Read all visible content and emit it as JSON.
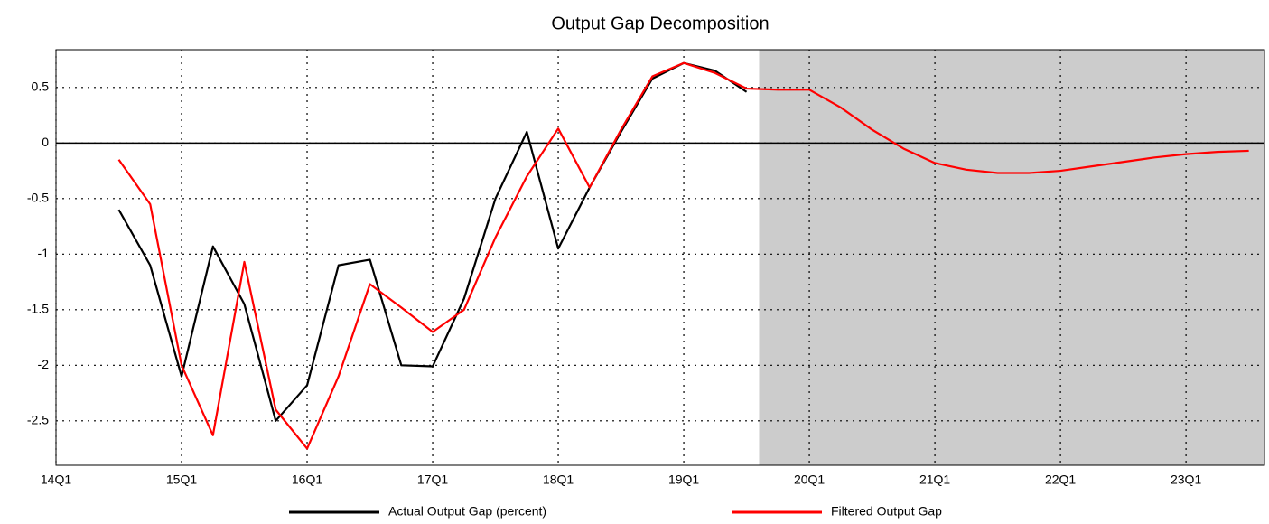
{
  "chart_data": {
    "type": "line",
    "title": "Output Gap Decomposition",
    "x": [
      2,
      3,
      4,
      5,
      6,
      7,
      8,
      9,
      10,
      11,
      12,
      13,
      14,
      15,
      16,
      17,
      18,
      19,
      20,
      21,
      22,
      23,
      24,
      25,
      26,
      27,
      28,
      29,
      30,
      31,
      32,
      33,
      34,
      35,
      36,
      37,
      38
    ],
    "series": [
      {
        "name": "Actual Output Gap (percent)",
        "color": "#000000",
        "values": [
          -0.6,
          -1.1,
          -2.1,
          -0.93,
          -1.45,
          -2.5,
          -2.18,
          -1.1,
          -1.05,
          -2.0,
          -2.01,
          -1.4,
          -0.5,
          0.1,
          -0.95,
          -0.4,
          0.1,
          0.58,
          0.72,
          0.65,
          0.46,
          null,
          null,
          null,
          null,
          null,
          null,
          null,
          null,
          null,
          null,
          null,
          null,
          null,
          null,
          null,
          null
        ]
      },
      {
        "name": "Filtered Output Gap",
        "color": "#ff0000",
        "values": [
          -0.15,
          -0.55,
          -2.0,
          -2.63,
          -1.07,
          -2.4,
          -2.75,
          -2.1,
          -1.27,
          -1.48,
          -1.7,
          -1.5,
          -0.85,
          -0.3,
          0.13,
          -0.4,
          0.12,
          0.6,
          0.72,
          0.63,
          0.49,
          0.48,
          0.48,
          0.32,
          0.12,
          -0.05,
          -0.18,
          -0.24,
          -0.27,
          -0.27,
          -0.25,
          -0.21,
          -0.17,
          -0.13,
          -0.1,
          -0.08,
          -0.07
        ]
      }
    ],
    "xlim": [
      0,
      38.5
    ],
    "xticks": [
      {
        "value": 0,
        "label": "14Q1"
      },
      {
        "value": 4,
        "label": "15Q1"
      },
      {
        "value": 8,
        "label": "16Q1"
      },
      {
        "value": 12,
        "label": "17Q1"
      },
      {
        "value": 16,
        "label": "18Q1"
      },
      {
        "value": 20,
        "label": "19Q1"
      },
      {
        "value": 24,
        "label": "20Q1"
      },
      {
        "value": 28,
        "label": "21Q1"
      },
      {
        "value": 32,
        "label": "22Q1"
      },
      {
        "value": 36,
        "label": "23Q1"
      }
    ],
    "ylim": [
      -2.9,
      0.84
    ],
    "yticks": [
      0.5,
      0,
      -0.5,
      -1,
      -1.5,
      -2,
      -2.5
    ],
    "grid": true,
    "shaded_xrange": [
      22.4,
      38.5
    ],
    "legend": "bottom"
  }
}
